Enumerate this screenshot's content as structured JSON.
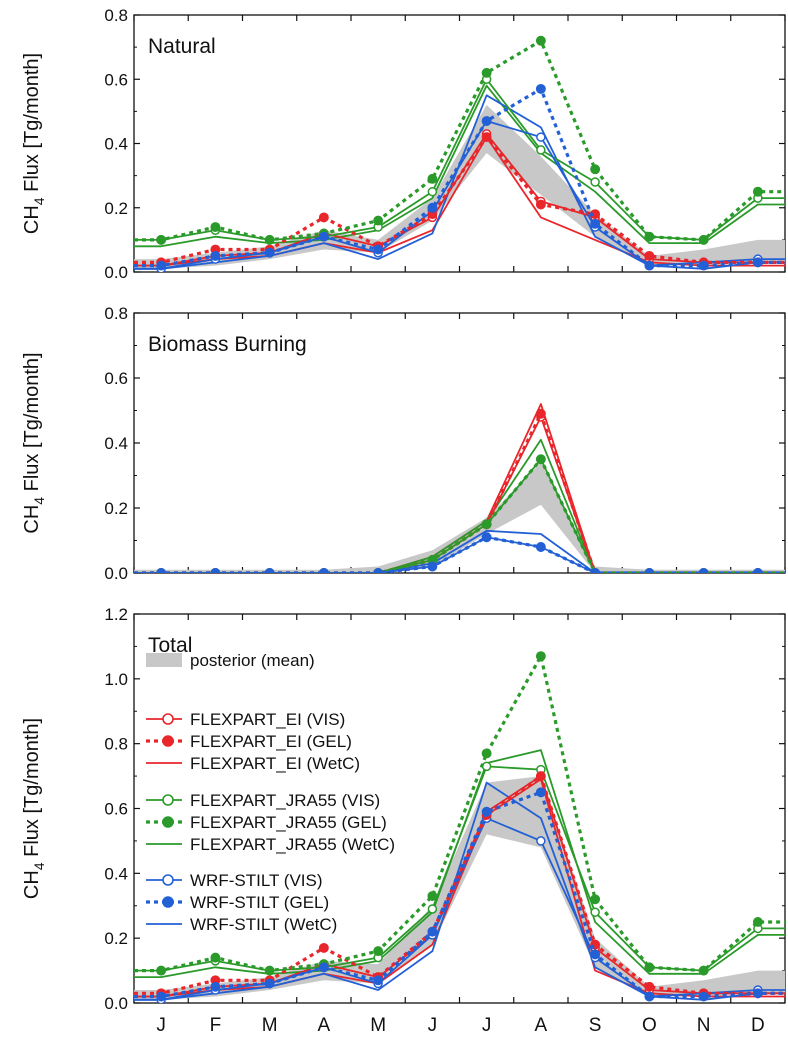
{
  "figure": {
    "months": [
      "J",
      "F",
      "M",
      "A",
      "M",
      "J",
      "J",
      "A",
      "S",
      "O",
      "N",
      "D"
    ],
    "ylabel_main": "CH",
    "ylabel_sub": "4",
    "ylabel_rest": " Flux [Tg/month]"
  },
  "colors": {
    "EI": "#e8262b",
    "JRA": "#2a9a2a",
    "WRF": "#2360d6",
    "posterior": "#c8c8c8"
  },
  "chart_data": [
    {
      "type": "line",
      "title": "Natural",
      "ylim": [
        0,
        0.8
      ],
      "yticks": [
        "0.0",
        "0.2",
        "0.4",
        "0.6",
        "0.8"
      ],
      "x": [
        0.5,
        1.5,
        2.5,
        3.5,
        4.5,
        5.5,
        6.5,
        7.5,
        8.5,
        9.5,
        10.5,
        11.5
      ],
      "series": [
        {
          "name": "posterior (mean)",
          "style": "band",
          "lower": [
            0.01,
            0.02,
            0.04,
            0.07,
            0.06,
            0.16,
            0.37,
            0.24,
            0.11,
            0.02,
            0.02,
            0.03
          ],
          "upper": [
            0.04,
            0.06,
            0.08,
            0.13,
            0.1,
            0.23,
            0.52,
            0.36,
            0.18,
            0.05,
            0.07,
            0.1
          ]
        },
        {
          "name": "FLEXPART_EI (VIS)",
          "model": "EI",
          "style": "vis",
          "values": [
            0.02,
            0.05,
            0.06,
            0.12,
            0.08,
            0.17,
            0.43,
            0.22,
            0.17,
            0.04,
            0.03,
            0.03
          ]
        },
        {
          "name": "FLEXPART_EI (GEL)",
          "model": "EI",
          "style": "gel",
          "values": [
            0.03,
            0.07,
            0.07,
            0.17,
            0.08,
            0.18,
            0.42,
            0.21,
            0.18,
            0.05,
            0.03,
            0.03
          ]
        },
        {
          "name": "FLEXPART_EI (WetC)",
          "model": "EI",
          "style": "wetc",
          "values": [
            0.02,
            0.04,
            0.05,
            0.09,
            0.06,
            0.13,
            0.42,
            0.17,
            0.1,
            0.03,
            0.02,
            0.02
          ]
        },
        {
          "name": "FLEXPART_JRA55 (VIS)",
          "model": "JRA",
          "style": "vis",
          "values": [
            0.1,
            0.13,
            0.1,
            0.11,
            0.14,
            0.25,
            0.6,
            0.38,
            0.28,
            0.11,
            0.1,
            0.23
          ]
        },
        {
          "name": "FLEXPART_JRA55 (GEL)",
          "model": "JRA",
          "style": "gel",
          "values": [
            0.1,
            0.14,
            0.1,
            0.12,
            0.16,
            0.29,
            0.62,
            0.72,
            0.32,
            0.11,
            0.1,
            0.25
          ]
        },
        {
          "name": "FLEXPART_JRA55 (WetC)",
          "model": "JRA",
          "style": "wetc",
          "values": [
            0.08,
            0.11,
            0.09,
            0.1,
            0.13,
            0.23,
            0.58,
            0.37,
            0.25,
            0.09,
            0.09,
            0.21
          ]
        },
        {
          "name": "WRF-STILT (VIS)",
          "model": "WRF",
          "style": "vis",
          "values": [
            0.01,
            0.04,
            0.06,
            0.11,
            0.06,
            0.19,
            0.47,
            0.42,
            0.14,
            0.02,
            0.03,
            0.04
          ]
        },
        {
          "name": "WRF-STILT (GEL)",
          "model": "WRF",
          "style": "gel",
          "values": [
            0.02,
            0.05,
            0.06,
            0.11,
            0.07,
            0.2,
            0.47,
            0.57,
            0.15,
            0.02,
            0.02,
            0.03
          ]
        },
        {
          "name": "WRF-STILT (WetC)",
          "model": "WRF",
          "style": "wetc",
          "values": [
            0.01,
            0.03,
            0.05,
            0.09,
            0.04,
            0.12,
            0.55,
            0.45,
            0.11,
            0.02,
            0.01,
            0.03
          ]
        }
      ]
    },
    {
      "type": "line",
      "title": "Biomass Burning",
      "ylim": [
        0,
        0.8
      ],
      "yticks": [
        "0.0",
        "0.2",
        "0.4",
        "0.6",
        "0.8"
      ],
      "x": [
        0.5,
        1.5,
        2.5,
        3.5,
        4.5,
        5.5,
        6.5,
        7.5,
        8.5,
        9.5,
        10.5,
        11.5
      ],
      "series": [
        {
          "name": "posterior (mean)",
          "style": "band",
          "lower": [
            0,
            0,
            0,
            0,
            0,
            0.02,
            0.12,
            0.21,
            0,
            0,
            0,
            0
          ],
          "upper": [
            0.01,
            0.01,
            0.01,
            0.01,
            0.02,
            0.07,
            0.17,
            0.34,
            0.02,
            0.01,
            0.01,
            0.01
          ]
        },
        {
          "name": "FLEXPART_EI (VIS)",
          "model": "EI",
          "style": "vis",
          "values": [
            0,
            0,
            0,
            0,
            0,
            0.04,
            0.15,
            0.48,
            0,
            0,
            0,
            0
          ]
        },
        {
          "name": "FLEXPART_EI (GEL)",
          "model": "EI",
          "style": "gel",
          "values": [
            0,
            0,
            0,
            0,
            0,
            0.04,
            0.15,
            0.49,
            0,
            0,
            0,
            0
          ]
        },
        {
          "name": "FLEXPART_EI (WetC)",
          "model": "EI",
          "style": "wetc",
          "values": [
            0,
            0,
            0,
            0,
            0,
            0.05,
            0.16,
            0.52,
            0,
            0,
            0,
            0
          ]
        },
        {
          "name": "FLEXPART_JRA55 (VIS)",
          "model": "JRA",
          "style": "vis",
          "values": [
            0,
            0,
            0,
            0,
            0,
            0.04,
            0.15,
            0.35,
            0,
            0,
            0,
            0
          ]
        },
        {
          "name": "FLEXPART_JRA55 (GEL)",
          "model": "JRA",
          "style": "gel",
          "values": [
            0,
            0,
            0,
            0,
            0,
            0.04,
            0.15,
            0.35,
            0,
            0,
            0,
            0
          ]
        },
        {
          "name": "FLEXPART_JRA55 (WetC)",
          "model": "JRA",
          "style": "wetc",
          "values": [
            0,
            0,
            0,
            0,
            0,
            0.05,
            0.16,
            0.41,
            0,
            0,
            0,
            0
          ]
        },
        {
          "name": "WRF-STILT (VIS)",
          "model": "WRF",
          "style": "vis",
          "values": [
            0,
            0,
            0,
            0,
            0,
            0.02,
            0.11,
            0.08,
            0,
            0,
            0,
            0
          ]
        },
        {
          "name": "WRF-STILT (GEL)",
          "model": "WRF",
          "style": "gel",
          "values": [
            0,
            0,
            0,
            0,
            0,
            0.02,
            0.11,
            0.08,
            0,
            0,
            0,
            0
          ]
        },
        {
          "name": "WRF-STILT (WetC)",
          "model": "WRF",
          "style": "wetc",
          "values": [
            0,
            0,
            0,
            0,
            0,
            0.03,
            0.13,
            0.12,
            0,
            0,
            0,
            0
          ]
        }
      ]
    },
    {
      "type": "line",
      "title": "Total",
      "ylim": [
        0,
        1.2
      ],
      "yticks": [
        "0.0",
        "0.2",
        "0.4",
        "0.6",
        "0.8",
        "1.0",
        "1.2"
      ],
      "x": [
        0.5,
        1.5,
        2.5,
        3.5,
        4.5,
        5.5,
        6.5,
        7.5,
        8.5,
        9.5,
        10.5,
        11.5
      ],
      "legend": {
        "location": "upper-left"
      },
      "series": [
        {
          "name": "posterior (mean)",
          "style": "band",
          "lower": [
            0.01,
            0.02,
            0.04,
            0.07,
            0.06,
            0.18,
            0.52,
            0.48,
            0.11,
            0.02,
            0.02,
            0.03
          ],
          "upper": [
            0.04,
            0.06,
            0.08,
            0.13,
            0.12,
            0.3,
            0.68,
            0.7,
            0.2,
            0.05,
            0.07,
            0.1
          ]
        },
        {
          "name": "FLEXPART_EI (VIS)",
          "model": "EI",
          "style": "vis",
          "values": [
            0.02,
            0.05,
            0.06,
            0.12,
            0.08,
            0.21,
            0.59,
            0.7,
            0.17,
            0.04,
            0.03,
            0.03
          ]
        },
        {
          "name": "FLEXPART_EI (GEL)",
          "model": "EI",
          "style": "gel",
          "values": [
            0.03,
            0.07,
            0.07,
            0.17,
            0.08,
            0.22,
            0.58,
            0.7,
            0.18,
            0.05,
            0.03,
            0.03
          ]
        },
        {
          "name": "FLEXPART_EI (WetC)",
          "model": "EI",
          "style": "wetc",
          "values": [
            0.02,
            0.04,
            0.05,
            0.09,
            0.06,
            0.18,
            0.58,
            0.69,
            0.1,
            0.03,
            0.02,
            0.02
          ]
        },
        {
          "name": "FLEXPART_JRA55 (VIS)",
          "model": "JRA",
          "style": "vis",
          "values": [
            0.1,
            0.13,
            0.1,
            0.11,
            0.14,
            0.29,
            0.73,
            0.72,
            0.28,
            0.11,
            0.1,
            0.23
          ]
        },
        {
          "name": "FLEXPART_JRA55 (GEL)",
          "model": "JRA",
          "style": "gel",
          "values": [
            0.1,
            0.14,
            0.1,
            0.12,
            0.16,
            0.33,
            0.77,
            1.07,
            0.32,
            0.11,
            0.1,
            0.25
          ]
        },
        {
          "name": "FLEXPART_JRA55 (WetC)",
          "model": "JRA",
          "style": "wetc",
          "values": [
            0.08,
            0.11,
            0.09,
            0.1,
            0.13,
            0.28,
            0.74,
            0.78,
            0.25,
            0.09,
            0.09,
            0.21
          ]
        },
        {
          "name": "WRF-STILT (VIS)",
          "model": "WRF",
          "style": "vis",
          "values": [
            0.01,
            0.04,
            0.06,
            0.11,
            0.06,
            0.21,
            0.57,
            0.5,
            0.14,
            0.02,
            0.03,
            0.04
          ]
        },
        {
          "name": "WRF-STILT (GEL)",
          "model": "WRF",
          "style": "gel",
          "values": [
            0.02,
            0.05,
            0.06,
            0.11,
            0.07,
            0.22,
            0.59,
            0.65,
            0.15,
            0.02,
            0.02,
            0.03
          ]
        },
        {
          "name": "WRF-STILT (WetC)",
          "model": "WRF",
          "style": "wetc",
          "values": [
            0.01,
            0.03,
            0.05,
            0.09,
            0.04,
            0.16,
            0.68,
            0.57,
            0.11,
            0.02,
            0.01,
            0.03
          ]
        }
      ]
    }
  ]
}
